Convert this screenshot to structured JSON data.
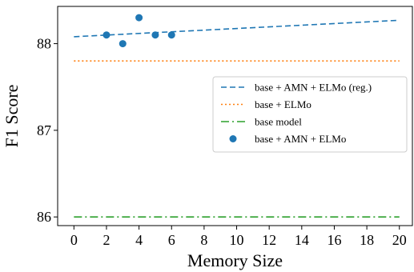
{
  "chart_data": {
    "type": "line",
    "xlabel": "Memory Size",
    "ylabel": "F1 Score",
    "xlim": [
      -1,
      20.8
    ],
    "ylim": [
      85.9,
      88.43
    ],
    "x_ticks": [
      0,
      2,
      4,
      6,
      8,
      10,
      12,
      14,
      16,
      18,
      20
    ],
    "y_ticks": [
      86,
      87,
      88
    ],
    "grid": false,
    "legend_position": "right",
    "series": [
      {
        "name": "base + AMN + ELMo (reg.)",
        "kind": "line",
        "style": "dashed",
        "color": "#1f77b4",
        "x": [
          0,
          20
        ],
        "y": [
          88.08,
          88.27
        ]
      },
      {
        "name": "base + ELMo",
        "kind": "line",
        "style": "dotted",
        "color": "#ff7f0e",
        "x": [
          0,
          20
        ],
        "y": [
          87.8,
          87.8
        ]
      },
      {
        "name": "base model",
        "kind": "line",
        "style": "dashdot",
        "color": "#2ca02c",
        "x": [
          0,
          20
        ],
        "y": [
          86.0,
          86.0
        ]
      },
      {
        "name": "base + AMN + ELMo",
        "kind": "scatter",
        "color": "#1f77b4",
        "x": [
          2,
          3,
          4,
          5,
          6
        ],
        "y": [
          88.1,
          88.0,
          88.3,
          88.1,
          88.1
        ]
      }
    ]
  }
}
